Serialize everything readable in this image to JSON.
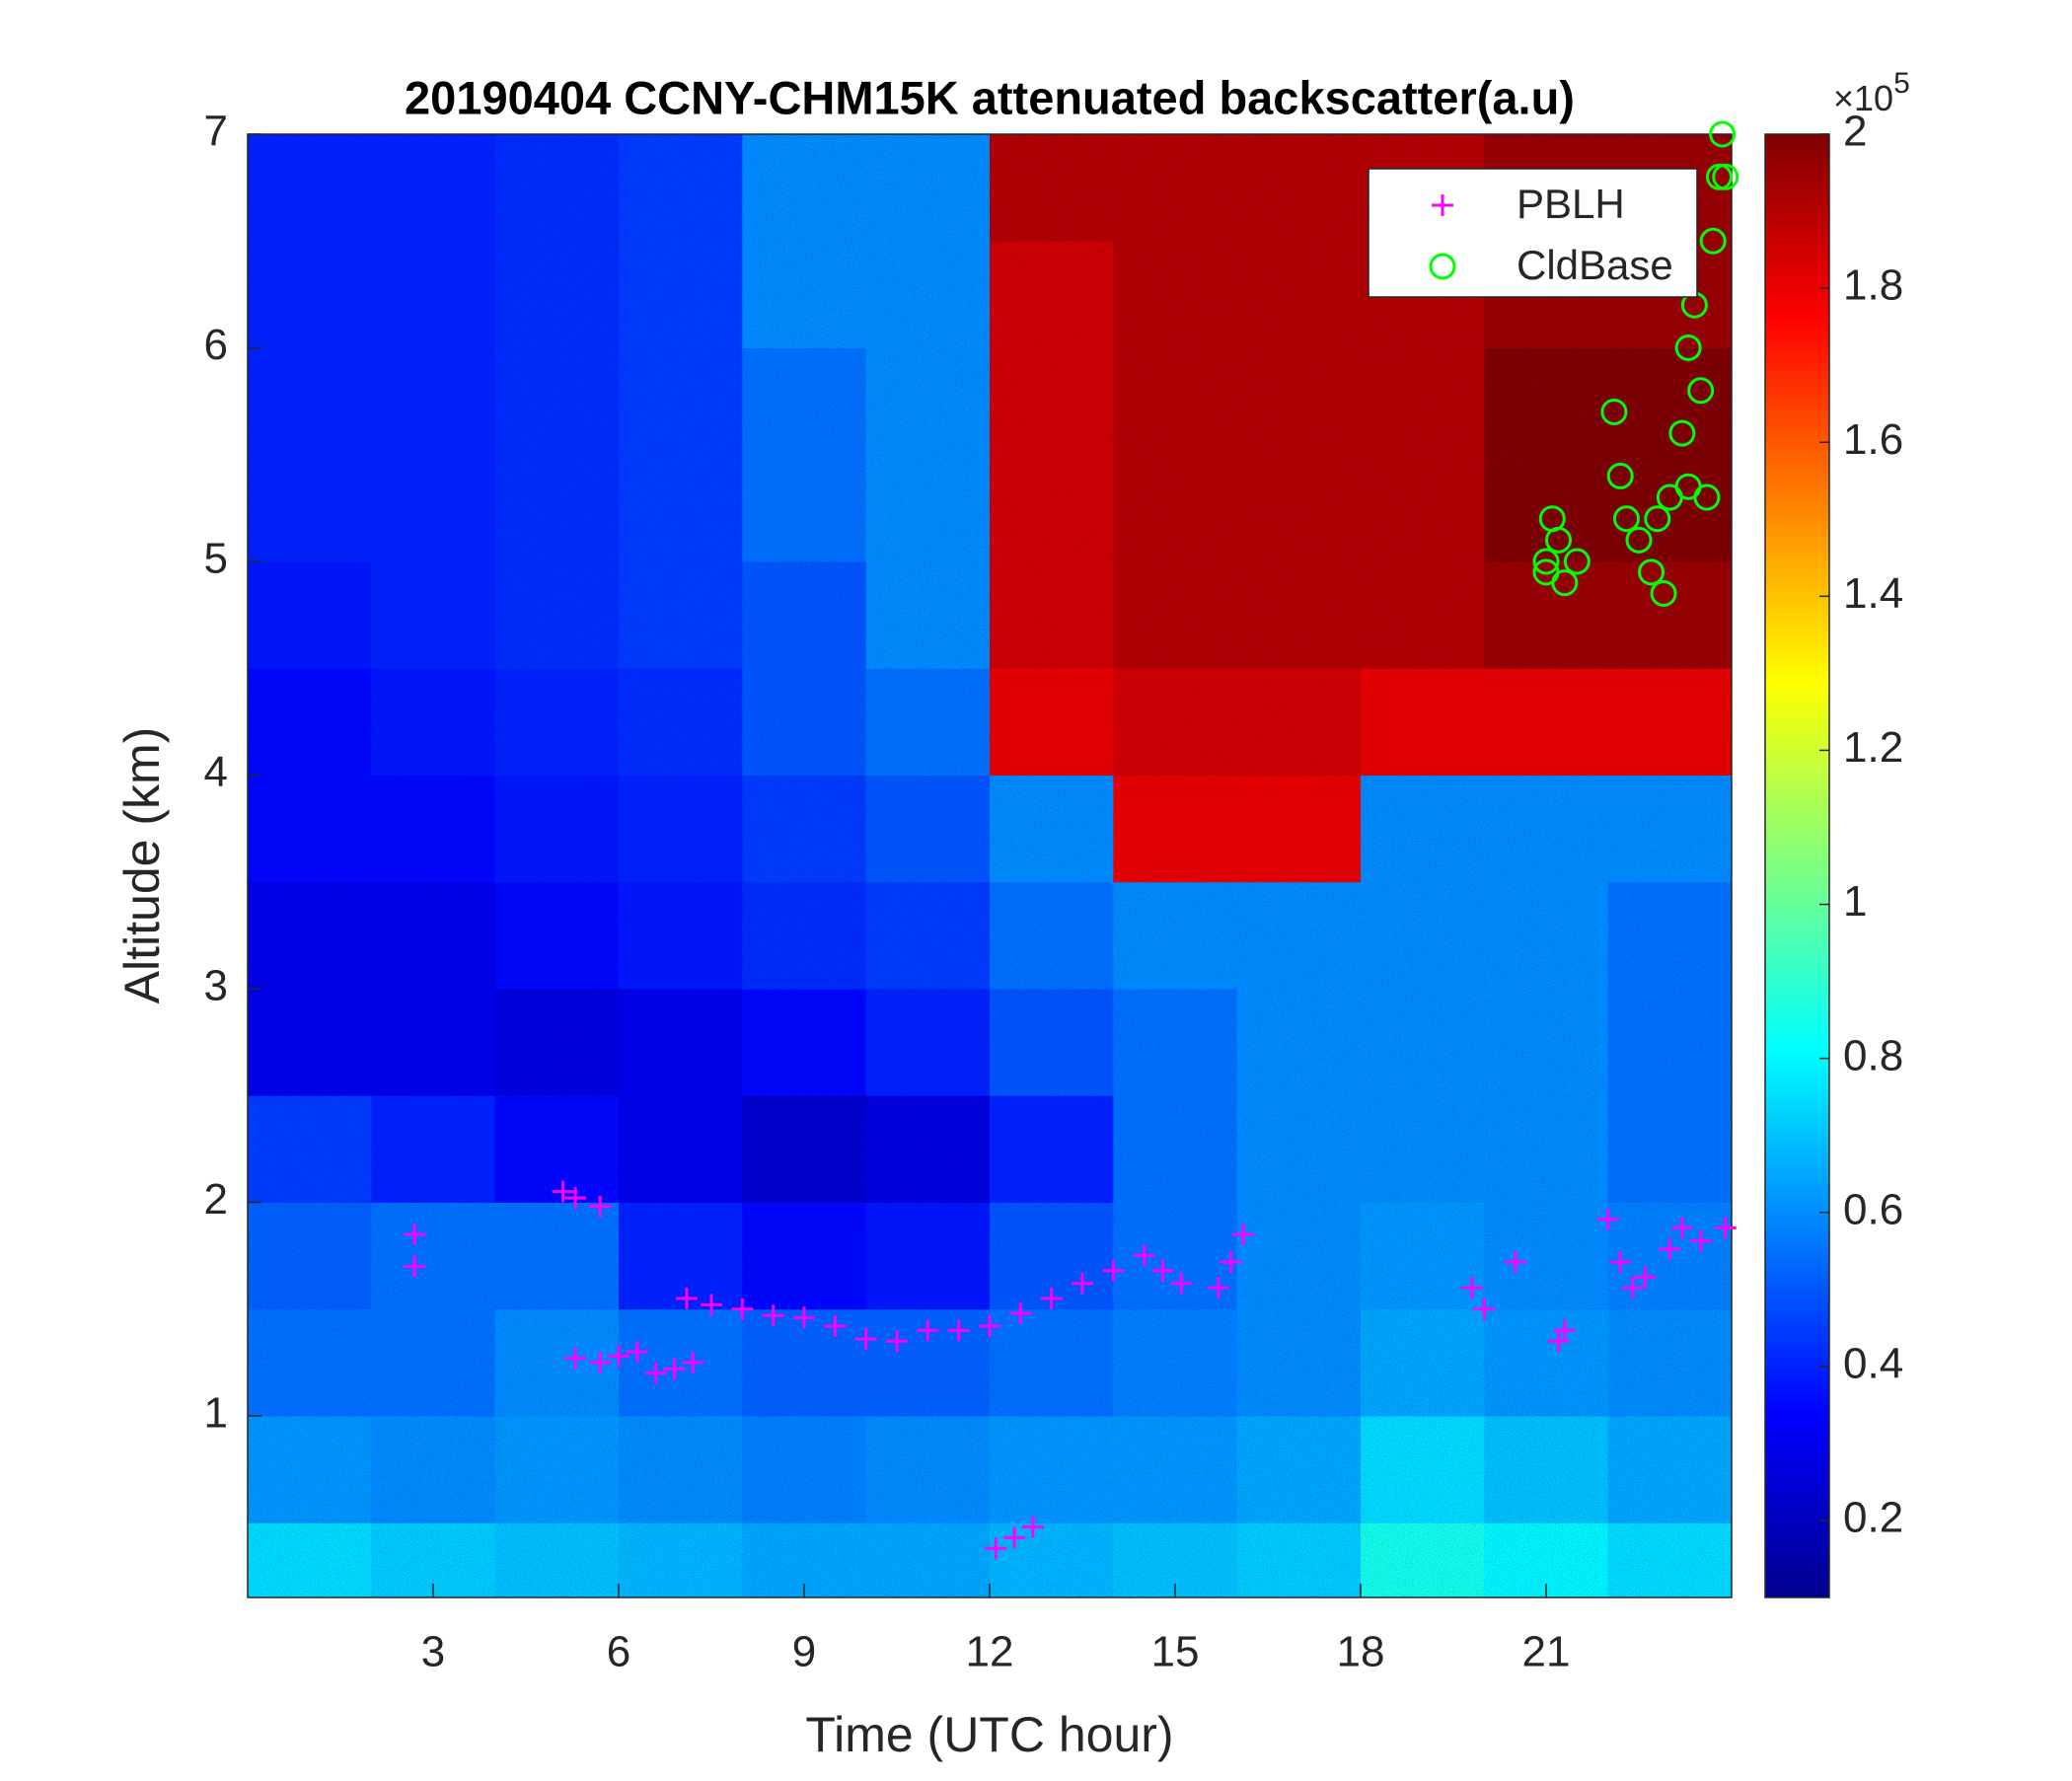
{
  "chart_data": {
    "type": "heatmap",
    "title": "20190404 CCNY-CHM15K attenuated backscatter(a.u)",
    "xlabel": "Time (UTC hour)",
    "ylabel": "Altitude (km)",
    "xlim": [
      0,
      24
    ],
    "ylim": [
      0.15,
      7
    ],
    "xticks": [
      3,
      6,
      9,
      12,
      15,
      18,
      21
    ],
    "yticks": [
      1,
      2,
      3,
      4,
      5,
      6,
      7
    ],
    "colormap": "jet",
    "clim": [
      0.1,
      2
    ],
    "cticks": [
      0.2,
      0.4,
      0.6,
      0.8,
      1,
      1.2,
      1.4,
      1.6,
      1.8,
      2
    ],
    "colorbar_multiplier": {
      "base": "×10",
      "exponent": "5"
    },
    "x_bins": [
      0,
      2,
      4,
      6,
      8,
      10,
      12,
      14,
      16,
      18,
      20,
      22,
      24
    ],
    "y_bins": [
      0.15,
      0.5,
      1,
      1.5,
      2,
      2.5,
      3,
      3.5,
      4,
      4.5,
      5,
      5.5,
      6,
      6.5,
      7
    ],
    "z": [
      [
        0.75,
        0.72,
        0.7,
        0.68,
        0.65,
        0.65,
        0.68,
        0.7,
        0.72,
        0.85,
        0.8,
        0.75
      ],
      [
        0.62,
        0.6,
        0.62,
        0.6,
        0.58,
        0.6,
        0.62,
        0.62,
        0.65,
        0.75,
        0.7,
        0.65
      ],
      [
        0.55,
        0.55,
        0.6,
        0.55,
        0.52,
        0.52,
        0.55,
        0.58,
        0.6,
        0.65,
        0.62,
        0.6
      ],
      [
        0.52,
        0.55,
        0.55,
        0.4,
        0.35,
        0.38,
        0.5,
        0.55,
        0.6,
        0.62,
        0.6,
        0.58
      ],
      [
        0.45,
        0.4,
        0.35,
        0.3,
        0.25,
        0.28,
        0.4,
        0.55,
        0.6,
        0.6,
        0.6,
        0.55
      ],
      [
        0.3,
        0.3,
        0.28,
        0.3,
        0.35,
        0.4,
        0.5,
        0.55,
        0.6,
        0.6,
        0.6,
        0.55
      ],
      [
        0.3,
        0.3,
        0.35,
        0.38,
        0.42,
        0.45,
        0.55,
        0.6,
        0.6,
        0.6,
        0.6,
        0.55
      ],
      [
        0.35,
        0.35,
        0.38,
        0.4,
        0.45,
        0.5,
        0.6,
        1.8,
        1.8,
        0.6,
        0.6,
        0.6
      ],
      [
        0.35,
        0.38,
        0.4,
        0.42,
        0.5,
        0.55,
        1.8,
        1.85,
        1.85,
        1.8,
        1.8,
        1.8
      ],
      [
        0.38,
        0.4,
        0.42,
        0.45,
        0.5,
        0.6,
        1.85,
        1.9,
        1.9,
        1.9,
        1.95,
        1.95
      ],
      [
        0.4,
        0.4,
        0.42,
        0.45,
        0.55,
        0.6,
        1.85,
        1.9,
        1.9,
        1.9,
        2,
        2
      ],
      [
        0.4,
        0.4,
        0.42,
        0.45,
        0.55,
        0.6,
        1.85,
        1.9,
        1.9,
        1.9,
        2,
        2
      ],
      [
        0.4,
        0.4,
        0.42,
        0.45,
        0.6,
        0.6,
        1.85,
        1.9,
        1.9,
        1.9,
        1.95,
        1.95
      ],
      [
        0.4,
        0.4,
        0.42,
        0.45,
        0.6,
        0.6,
        1.9,
        1.9,
        1.9,
        1.9,
        1.95,
        1.95
      ]
    ],
    "legend": "upper right",
    "series": [
      {
        "name": "PBLH",
        "color": "#ff00ff",
        "marker": "+",
        "x": [
          2.7,
          2.7,
          5.1,
          5.3,
          5.7,
          5.3,
          5.7,
          6.0,
          6.3,
          6.6,
          6.9,
          7.2,
          7.1,
          7.5,
          8,
          8.5,
          9,
          9.5,
          10,
          10.5,
          11,
          11.5,
          12,
          12.5,
          13,
          13.5,
          14,
          14.5,
          14.8,
          15.1,
          15.7,
          15.9,
          16.1,
          12.1,
          12.4,
          12.7,
          19.8,
          20.0,
          20.5,
          21.3,
          21.2,
          22.0,
          22.2,
          22.4,
          22.6,
          23.0,
          23.2,
          23.5,
          23.9
        ],
        "y": [
          1.85,
          1.7,
          2.05,
          2.02,
          1.98,
          1.27,
          1.25,
          1.28,
          1.3,
          1.2,
          1.22,
          1.25,
          1.55,
          1.52,
          1.5,
          1.47,
          1.46,
          1.42,
          1.36,
          1.35,
          1.4,
          1.4,
          1.42,
          1.48,
          1.55,
          1.62,
          1.68,
          1.75,
          1.68,
          1.62,
          1.6,
          1.72,
          1.85,
          0.38,
          0.43,
          0.48,
          1.6,
          1.5,
          1.72,
          1.4,
          1.35,
          1.92,
          1.72,
          1.6,
          1.65,
          1.78,
          1.88,
          1.82,
          1.88
        ]
      },
      {
        "name": "CldBase",
        "color": "#00ff00",
        "marker": "o",
        "x": [
          21.0,
          21.1,
          21.0,
          21.2,
          21.5,
          21.3,
          22.1,
          22.2,
          22.3,
          22.5,
          22.7,
          22.9,
          23.0,
          23.2,
          23.3,
          23.4,
          23.5,
          23.6,
          23.7,
          23.8,
          23.85,
          23.9,
          22.8,
          23.3
        ],
        "y": [
          5.0,
          5.2,
          4.95,
          5.1,
          5.0,
          4.9,
          5.7,
          5.4,
          5.2,
          5.1,
          4.95,
          4.85,
          5.3,
          5.6,
          6.0,
          6.2,
          5.8,
          5.3,
          6.5,
          6.8,
          7.0,
          6.8,
          5.2,
          5.35
        ]
      }
    ]
  }
}
